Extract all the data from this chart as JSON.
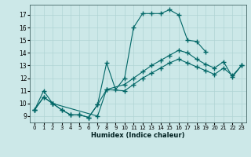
{
  "xlabel": "Humidex (Indice chaleur)",
  "xlim": [
    -0.5,
    23.5
  ],
  "ylim": [
    8.5,
    17.8
  ],
  "xticks": [
    0,
    1,
    2,
    3,
    4,
    5,
    6,
    7,
    8,
    9,
    10,
    11,
    12,
    13,
    14,
    15,
    16,
    17,
    18,
    19,
    20,
    21,
    22,
    23
  ],
  "yticks": [
    9,
    10,
    11,
    12,
    13,
    14,
    15,
    16,
    17
  ],
  "bg_color": "#cce8e8",
  "line_color": "#006666",
  "line1_x": [
    0,
    1,
    2,
    3,
    4,
    5,
    6,
    7,
    8,
    9,
    10,
    11,
    12,
    13,
    14,
    15,
    16,
    17,
    18,
    19
  ],
  "line1_y": [
    9.5,
    11.0,
    10.0,
    9.5,
    9.1,
    9.1,
    8.9,
    9.9,
    13.2,
    11.1,
    12.0,
    16.0,
    17.1,
    17.1,
    17.1,
    17.4,
    17.0,
    15.0,
    14.9,
    14.1
  ],
  "line2_x": [
    0,
    1,
    2,
    7,
    8,
    10,
    11,
    12,
    13,
    14,
    15,
    16,
    17,
    18,
    19,
    20,
    21,
    22,
    23
  ],
  "line2_y": [
    9.5,
    10.5,
    10.0,
    9.0,
    11.1,
    11.5,
    12.0,
    12.5,
    13.0,
    13.4,
    13.8,
    14.2,
    14.0,
    13.5,
    13.1,
    12.8,
    13.3,
    12.1,
    13.0
  ],
  "line3_x": [
    0,
    1,
    2,
    3,
    4,
    5,
    6,
    7,
    8,
    10,
    11,
    12,
    13,
    14,
    15,
    16,
    17,
    18,
    19,
    20,
    21,
    22,
    23
  ],
  "line3_y": [
    9.5,
    10.5,
    10.0,
    9.5,
    9.1,
    9.1,
    8.9,
    9.9,
    11.1,
    11.0,
    11.5,
    12.0,
    12.4,
    12.8,
    13.2,
    13.5,
    13.2,
    12.9,
    12.6,
    12.3,
    12.8,
    12.2,
    13.0
  ]
}
